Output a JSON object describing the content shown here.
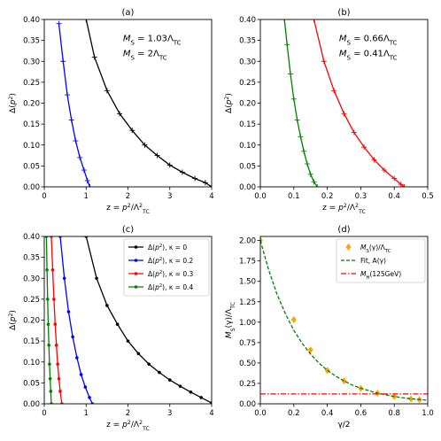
{
  "chart_data": [
    {
      "type": "line",
      "panel_label": "(a)",
      "xlabel": "z = p²/Λ²TC",
      "ylabel": "Δ(p²)",
      "xlim": [
        0,
        4
      ],
      "ylim": [
        0,
        0.4
      ],
      "xticks": [
        "0",
        "1",
        "2",
        "3",
        "4"
      ],
      "yticks": [
        "0.00",
        "0.05",
        "0.10",
        "0.15",
        "0.20",
        "0.25",
        "0.30",
        "0.35",
        "0.40"
      ],
      "annotations": [
        {
          "text": "MS = 1.03ΛTC",
          "color": "#0000ff"
        },
        {
          "text": "MS = 2ΛTC",
          "color": "#000000"
        }
      ],
      "series": [
        {
          "color": "#0000ff",
          "marker": "+",
          "x": [
            0.35,
            0.45,
            0.55,
            0.65,
            0.75,
            0.85,
            0.95,
            1.03,
            1.09
          ],
          "y": [
            0.39,
            0.3,
            0.22,
            0.16,
            0.11,
            0.07,
            0.04,
            0.015,
            0.0
          ]
        },
        {
          "color": "#000000",
          "marker": "+",
          "x": [
            1.0,
            1.2,
            1.5,
            1.8,
            2.1,
            2.4,
            2.7,
            3.0,
            3.3,
            3.6,
            3.85,
            4.0
          ],
          "y": [
            0.4,
            0.31,
            0.23,
            0.175,
            0.135,
            0.1,
            0.075,
            0.052,
            0.035,
            0.02,
            0.01,
            0.0
          ]
        }
      ]
    },
    {
      "type": "line",
      "panel_label": "(b)",
      "xlabel": "z = p²/Λ²TC",
      "ylabel": "Δ(p²)",
      "xlim": [
        0,
        0.5
      ],
      "ylim": [
        0,
        0.4
      ],
      "xticks": [
        "0.0",
        "0.1",
        "0.2",
        "0.3",
        "0.4",
        "0.5"
      ],
      "yticks": [
        "0.00",
        "0.05",
        "0.10",
        "0.15",
        "0.20",
        "0.25",
        "0.30",
        "0.35",
        "0.40"
      ],
      "annotations": [
        {
          "text": "MS = 0.66ΛTC",
          "color": "#ff0000"
        },
        {
          "text": "MS = 0.41ΛTC",
          "color": "#008000"
        }
      ],
      "series": [
        {
          "color": "#008000",
          "marker": "+",
          "x": [
            0.072,
            0.08,
            0.09,
            0.1,
            0.11,
            0.12,
            0.13,
            0.14,
            0.15,
            0.16,
            0.17
          ],
          "y": [
            0.4,
            0.34,
            0.27,
            0.21,
            0.16,
            0.12,
            0.085,
            0.055,
            0.03,
            0.012,
            0.0
          ]
        },
        {
          "color": "#ff0000",
          "marker": "+",
          "x": [
            0.16,
            0.19,
            0.22,
            0.25,
            0.28,
            0.31,
            0.34,
            0.37,
            0.4,
            0.42,
            0.43
          ],
          "y": [
            0.4,
            0.3,
            0.23,
            0.175,
            0.13,
            0.095,
            0.065,
            0.04,
            0.02,
            0.006,
            0.0
          ]
        }
      ]
    },
    {
      "type": "line",
      "panel_label": "(c)",
      "xlabel": "z = p²/Λ²TC",
      "ylabel": "Δ(p²)",
      "xlim": [
        0,
        4
      ],
      "ylim": [
        0,
        0.4
      ],
      "xticks": [
        "0",
        "1",
        "2",
        "3",
        "4"
      ],
      "yticks": [
        "0.00",
        "0.05",
        "0.10",
        "0.15",
        "0.20",
        "0.25",
        "0.30",
        "0.35",
        "0.40"
      ],
      "legend_position": "top-right",
      "series": [
        {
          "name": "Δ(p²), κ = 0",
          "color": "#000000",
          "marker": "o",
          "x": [
            1.0,
            1.25,
            1.5,
            1.75,
            2.0,
            2.25,
            2.5,
            2.75,
            3.0,
            3.25,
            3.5,
            3.75,
            4.0
          ],
          "y": [
            0.4,
            0.3,
            0.235,
            0.19,
            0.15,
            0.12,
            0.095,
            0.075,
            0.057,
            0.042,
            0.028,
            0.015,
            0.002
          ]
        },
        {
          "name": "Δ(p²), κ = 0.2",
          "color": "#0000ff",
          "marker": "o",
          "x": [
            0.38,
            0.48,
            0.58,
            0.68,
            0.78,
            0.88,
            0.98,
            1.08,
            1.15
          ],
          "y": [
            0.4,
            0.3,
            0.22,
            0.16,
            0.11,
            0.07,
            0.04,
            0.015,
            0.0
          ]
        },
        {
          "name": "Δ(p²), κ = 0.3",
          "color": "#ff0000",
          "marker": "o",
          "x": [
            0.17,
            0.2,
            0.23,
            0.26,
            0.29,
            0.32,
            0.35,
            0.38,
            0.42
          ],
          "y": [
            0.4,
            0.32,
            0.25,
            0.19,
            0.14,
            0.095,
            0.06,
            0.03,
            0.0
          ]
        },
        {
          "name": "Δ(p²), κ = 0.4",
          "color": "#008000",
          "marker": "o",
          "x": [
            0.05,
            0.065,
            0.08,
            0.095,
            0.11,
            0.125,
            0.14,
            0.155,
            0.17
          ],
          "y": [
            0.4,
            0.32,
            0.25,
            0.19,
            0.14,
            0.095,
            0.06,
            0.03,
            0.0
          ]
        }
      ]
    },
    {
      "type": "scatter",
      "panel_label": "(d)",
      "xlabel": "γ/2",
      "ylabel": "MS(γ)/ΛTC",
      "xlim": [
        0,
        1.0
      ],
      "ylim": [
        0,
        2.05
      ],
      "xticks": [
        "0.0",
        "0.2",
        "0.4",
        "0.6",
        "0.8",
        "1.0"
      ],
      "yticks": [
        "0.00",
        "0.25",
        "0.50",
        "0.75",
        "1.00",
        "1.25",
        "1.50",
        "1.75",
        "2.00"
      ],
      "legend_position": "top-right",
      "series": [
        {
          "name": "MS(γ)/ΛTC",
          "color": "#ffa500",
          "marker": "diamond",
          "x": [
            0.0,
            0.2,
            0.3,
            0.4,
            0.5,
            0.6,
            0.7,
            0.8,
            0.9,
            0.95
          ],
          "y": [
            2.0,
            1.03,
            0.66,
            0.41,
            0.28,
            0.19,
            0.13,
            0.09,
            0.06,
            0.05
          ]
        },
        {
          "name": "Fit, A(γ)",
          "color": "#008000",
          "line": "dashed",
          "x": [
            0.0,
            0.05,
            0.1,
            0.15,
            0.2,
            0.25,
            0.3,
            0.35,
            0.4,
            0.45,
            0.5,
            0.55,
            0.6,
            0.65,
            0.7,
            0.75,
            0.8,
            0.85,
            0.9,
            0.95,
            1.0
          ],
          "y": [
            2.0,
            1.64,
            1.34,
            1.1,
            0.9,
            0.74,
            0.61,
            0.5,
            0.41,
            0.34,
            0.28,
            0.23,
            0.19,
            0.16,
            0.13,
            0.11,
            0.09,
            0.075,
            0.062,
            0.052,
            0.043
          ]
        },
        {
          "name": "MH(125GeV)",
          "color": "#ff0000",
          "line": "dashdot",
          "x": [
            0.0,
            1.0
          ],
          "y": [
            0.12,
            0.12
          ]
        }
      ]
    }
  ]
}
